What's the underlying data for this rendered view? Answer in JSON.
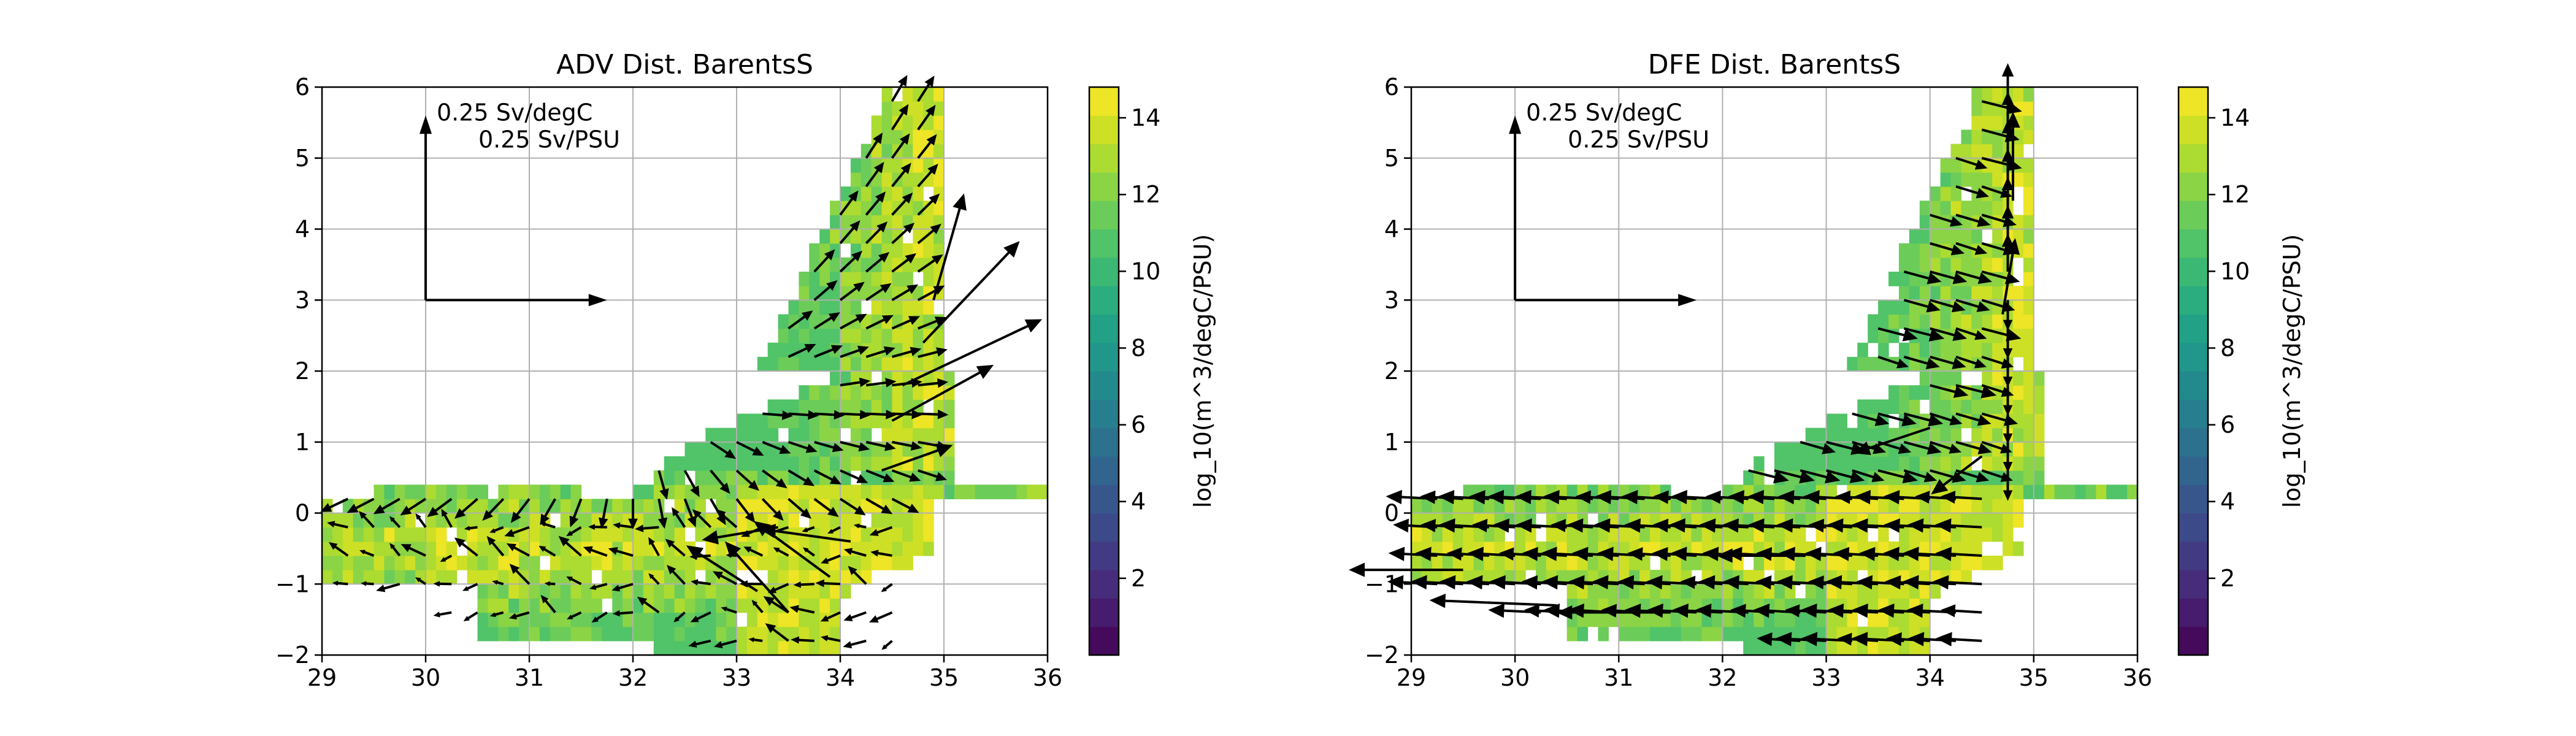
{
  "chart_data": [
    {
      "type": "heatmap",
      "title": "ADV Dist. BarentsS",
      "xlim": [
        29,
        36
      ],
      "ylim": [
        -2,
        6
      ],
      "xticks": [
        "29",
        "30",
        "31",
        "32",
        "33",
        "34",
        "35",
        "36"
      ],
      "yticks": [
        "-2",
        "-1",
        "0",
        "1",
        "2",
        "3",
        "4",
        "5",
        "6"
      ],
      "grid": true,
      "colormap": "viridis",
      "colorbar": {
        "label": "log_10(m^3/degC/PSU)",
        "range": [
          0,
          14.8
        ],
        "ticks": [
          "2",
          "4",
          "6",
          "8",
          "10",
          "12",
          "14"
        ],
        "levels": 20
      },
      "reference_arrows": {
        "vertical_label": "0.25 Sv/degC",
        "horizontal_label": "0.25 Sv/PSU",
        "origin": [
          30,
          3
        ],
        "vertical_tip": [
          30,
          5.6
        ],
        "horizontal_tip": [
          31.75,
          3
        ]
      },
      "arrow_flow": "radial_outward",
      "quiver": [
        {
          "x": 33.2,
          "y": -1.1,
          "u": -0.28,
          "v": 0.18
        },
        {
          "x": 33.5,
          "y": -1.4,
          "u": -0.25,
          "v": 0.28
        },
        {
          "x": 33.9,
          "y": -0.9,
          "u": -0.3,
          "v": 0.22
        },
        {
          "x": 34.1,
          "y": -0.4,
          "u": -0.36,
          "v": 0.05
        },
        {
          "x": 33.4,
          "y": -0.2,
          "u": -0.3,
          "v": -0.05
        },
        {
          "x": 34.4,
          "y": 0.6,
          "u": 0.28,
          "v": 0.1
        },
        {
          "x": 34.5,
          "y": 1.3,
          "u": 0.4,
          "v": 0.22
        },
        {
          "x": 34.6,
          "y": 1.8,
          "u": 0.55,
          "v": 0.26
        },
        {
          "x": 34.8,
          "y": 2.4,
          "u": 0.38,
          "v": 0.4
        },
        {
          "x": 34.9,
          "y": 3.0,
          "u": 0.12,
          "v": 0.42
        }
      ]
    },
    {
      "type": "heatmap",
      "title": "DFE Dist. BarentsS",
      "xlim": [
        29,
        36
      ],
      "ylim": [
        -2,
        6
      ],
      "xticks": [
        "29",
        "30",
        "31",
        "32",
        "33",
        "34",
        "35",
        "36"
      ],
      "yticks": [
        "-2",
        "-1",
        "0",
        "1",
        "2",
        "3",
        "4",
        "5",
        "6"
      ],
      "grid": true,
      "colormap": "viridis",
      "colorbar": {
        "label": "log_10(m^3/degC/PSU)",
        "range": [
          0,
          14.8
        ],
        "ticks": [
          "2",
          "4",
          "6",
          "8",
          "10",
          "12",
          "14"
        ],
        "levels": 20
      },
      "reference_arrows": {
        "vertical_label": "0.25 Sv/degC",
        "horizontal_label": "0.25 Sv/PSU",
        "origin": [
          30,
          3
        ],
        "vertical_tip": [
          30,
          5.6
        ],
        "horizontal_tip": [
          31.75,
          3
        ]
      },
      "arrow_flow": "inward_to_core",
      "quiver": [
        {
          "x": 29.5,
          "y": -0.8,
          "u": -0.45,
          "v": 0.0
        },
        {
          "x": 30.4,
          "y": -1.3,
          "u": -0.5,
          "v": 0.02
        },
        {
          "x": 31.5,
          "y": -1.4,
          "u": -0.45,
          "v": 0.0
        },
        {
          "x": 32.8,
          "y": -0.6,
          "u": -0.35,
          "v": 0.0
        },
        {
          "x": 34.0,
          "y": 1.2,
          "u": -0.3,
          "v": -0.1
        },
        {
          "x": 34.8,
          "y": 4.4,
          "u": 0.0,
          "v": 0.35
        },
        {
          "x": 34.7,
          "y": 2.8,
          "u": 0.05,
          "v": 0.3
        },
        {
          "x": 34.5,
          "y": 0.8,
          "u": -0.2,
          "v": -0.15
        }
      ]
    }
  ]
}
